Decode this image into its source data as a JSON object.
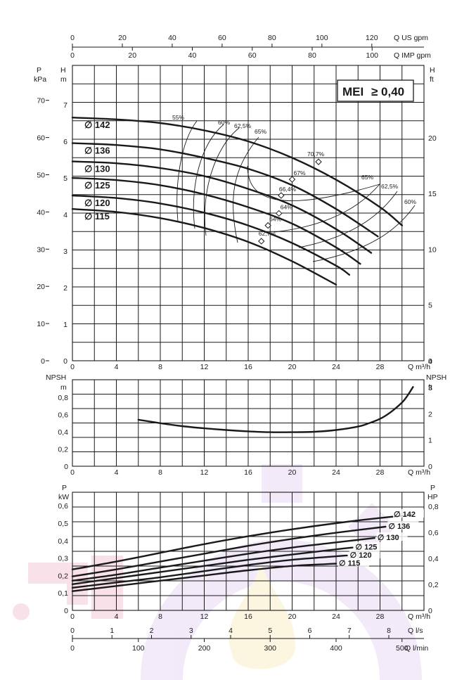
{
  "chart_data": [
    {
      "type": "line",
      "title": "",
      "mei_label": "MEI",
      "mei_value": "≥ 0,40",
      "xlabel": "Q m³/h",
      "left_axis_outer": {
        "label_top": "P",
        "label_unit": "kPa",
        "ticks": [
          "0",
          "10",
          "20",
          "30",
          "40",
          "50",
          "60",
          "70"
        ]
      },
      "left_axis_inner": {
        "label_top": "H",
        "label_unit": "m",
        "ticks": [
          "0",
          "1",
          "2",
          "3",
          "4",
          "5",
          "6",
          "7"
        ]
      },
      "right_axis": {
        "label_top": "H",
        "label_unit": "ft",
        "ticks": [
          "0",
          "5",
          "10",
          "15",
          "20"
        ]
      },
      "top_axis_us": {
        "label": "Q US gpm",
        "ticks": [
          "0",
          "20",
          "40",
          "60",
          "80",
          "100",
          "120"
        ]
      },
      "top_axis_imp": {
        "label": "Q IMP gpm",
        "ticks": [
          "0",
          "20",
          "40",
          "60",
          "80",
          "100"
        ]
      },
      "x_ticks": [
        "0",
        "4",
        "8",
        "12",
        "16",
        "20",
        "24",
        "28"
      ],
      "xlim": [
        0,
        32
      ],
      "ylim": [
        0,
        7.5
      ],
      "series": [
        {
          "name": "∅ 142",
          "x": [
            0,
            4,
            8,
            12,
            16,
            20,
            24,
            28,
            30
          ],
          "y": [
            6.65,
            6.6,
            6.5,
            6.3,
            6.0,
            5.55,
            4.95,
            4.2,
            3.7
          ]
        },
        {
          "name": "∅ 136",
          "x": [
            0,
            4,
            8,
            12,
            16,
            20,
            24,
            27.8
          ],
          "y": [
            5.95,
            5.9,
            5.78,
            5.55,
            5.25,
            4.8,
            4.15,
            3.4
          ]
        },
        {
          "name": "∅ 130",
          "x": [
            0,
            4,
            8,
            12,
            16,
            20,
            24,
            27.2
          ],
          "y": [
            5.45,
            5.4,
            5.27,
            5.05,
            4.7,
            4.25,
            3.6,
            2.95
          ]
        },
        {
          "name": "∅ 125",
          "x": [
            0,
            4,
            8,
            12,
            16,
            20,
            24,
            26.2
          ],
          "y": [
            5.0,
            4.94,
            4.8,
            4.55,
            4.2,
            3.75,
            3.1,
            2.65
          ]
        },
        {
          "name": "∅ 120",
          "x": [
            0,
            4,
            8,
            12,
            16,
            20,
            24,
            25.2
          ],
          "y": [
            4.52,
            4.45,
            4.3,
            4.05,
            3.7,
            3.22,
            2.6,
            2.35
          ]
        },
        {
          "name": "∅ 115",
          "x": [
            0,
            4,
            8,
            12,
            16,
            20,
            24
          ],
          "y": [
            4.15,
            4.07,
            3.9,
            3.63,
            3.25,
            2.72,
            2.08
          ]
        }
      ],
      "efficiency_labels": [
        "55%",
        "60%",
        "62,5%",
        "65%",
        "65%",
        "62,5%",
        "60%"
      ],
      "bep_points": [
        {
          "label": "70,7%",
          "x": 22.4,
          "y": 5.44
        },
        {
          "label": "67%",
          "x": 20.0,
          "y": 4.96
        },
        {
          "label": "66,4%",
          "x": 19.0,
          "y": 4.52
        },
        {
          "label": "64%",
          "x": 18.8,
          "y": 4.03
        },
        {
          "label": "64%",
          "x": 17.8,
          "y": 3.7
        },
        {
          "label": "62,7%",
          "x": 17.2,
          "y": 3.27
        }
      ]
    },
    {
      "type": "line",
      "title": "",
      "xlabel": "Q m³/h",
      "ylabel": "NPSH",
      "left_axis": {
        "label_top": "NPSH",
        "label_unit": "m",
        "ticks": [
          "0",
          "0,2",
          "0,4",
          "0,6",
          "0,8"
        ]
      },
      "right_axis": {
        "label_top": "NPSH",
        "label_unit": "ft",
        "ticks": [
          "0",
          "1",
          "2",
          "3",
          "4"
        ]
      },
      "x_ticks": [
        "0",
        "4",
        "8",
        "12",
        "16",
        "20",
        "24",
        "28"
      ],
      "xlim": [
        0,
        32
      ],
      "ylim": [
        0,
        0.95
      ],
      "series": [
        {
          "x": [
            6,
            8,
            10,
            12,
            14,
            16,
            18,
            20,
            22,
            24,
            26,
            27,
            28,
            29,
            30,
            30.5,
            31
          ],
          "y": [
            0.54,
            0.5,
            0.465,
            0.44,
            0.42,
            0.405,
            0.395,
            0.395,
            0.4,
            0.42,
            0.46,
            0.5,
            0.55,
            0.63,
            0.74,
            0.82,
            0.92
          ]
        }
      ]
    },
    {
      "type": "line",
      "title": "",
      "xlabel": "Q m³/h",
      "left_axis": {
        "label_top": "P",
        "label_unit": "kW",
        "ticks": [
          "0",
          "0,1",
          "0,2",
          "0,3",
          "0,4",
          "0,5",
          "0,6"
        ]
      },
      "right_axis": {
        "label_top": "P",
        "label_unit": "HP",
        "ticks": [
          "0",
          "0,2",
          "0,4",
          "0,6",
          "0,8"
        ]
      },
      "x_ticks": [
        "0",
        "4",
        "8",
        "12",
        "16",
        "20",
        "24",
        "28"
      ],
      "ls_axis": {
        "label": "Q l/s",
        "ticks": [
          "0",
          "1",
          "2",
          "3",
          "4",
          "5",
          "6",
          "7",
          "8"
        ]
      },
      "lmin_axis": {
        "label": "Q l/min",
        "ticks": [
          "0",
          "100",
          "200",
          "300",
          "400",
          "500"
        ]
      },
      "xlim": [
        0,
        32
      ],
      "ylim": [
        0,
        0.62
      ],
      "series": [
        {
          "name": "∅ 142",
          "x": [
            0,
            4,
            8,
            12,
            16,
            20,
            24,
            28,
            31
          ],
          "y": [
            0.235,
            0.28,
            0.33,
            0.38,
            0.425,
            0.465,
            0.5,
            0.53,
            0.548
          ]
        },
        {
          "name": "∅ 136",
          "x": [
            0,
            4,
            8,
            12,
            16,
            20,
            24,
            28.5
          ],
          "y": [
            0.195,
            0.235,
            0.28,
            0.325,
            0.37,
            0.41,
            0.445,
            0.48
          ]
        },
        {
          "name": "∅ 130",
          "x": [
            0,
            4,
            8,
            12,
            16,
            20,
            24,
            27.5
          ],
          "y": [
            0.17,
            0.205,
            0.245,
            0.285,
            0.325,
            0.36,
            0.39,
            0.415
          ]
        },
        {
          "name": "∅ 125",
          "x": [
            0,
            4,
            8,
            12,
            16,
            20,
            24,
            25.5
          ],
          "y": [
            0.15,
            0.185,
            0.22,
            0.255,
            0.29,
            0.32,
            0.35,
            0.36
          ]
        },
        {
          "name": "∅ 120",
          "x": [
            0,
            4,
            8,
            12,
            16,
            20,
            24,
            25
          ],
          "y": [
            0.13,
            0.16,
            0.19,
            0.225,
            0.26,
            0.29,
            0.31,
            0.315
          ]
        },
        {
          "name": "∅ 115",
          "x": [
            0,
            4,
            8,
            12,
            16,
            20,
            23,
            24
          ],
          "y": [
            0.11,
            0.14,
            0.17,
            0.2,
            0.23,
            0.255,
            0.265,
            0.268
          ]
        }
      ]
    }
  ],
  "colors": {
    "ink": "#1a1a1a",
    "watermark": "#8e44ad"
  }
}
